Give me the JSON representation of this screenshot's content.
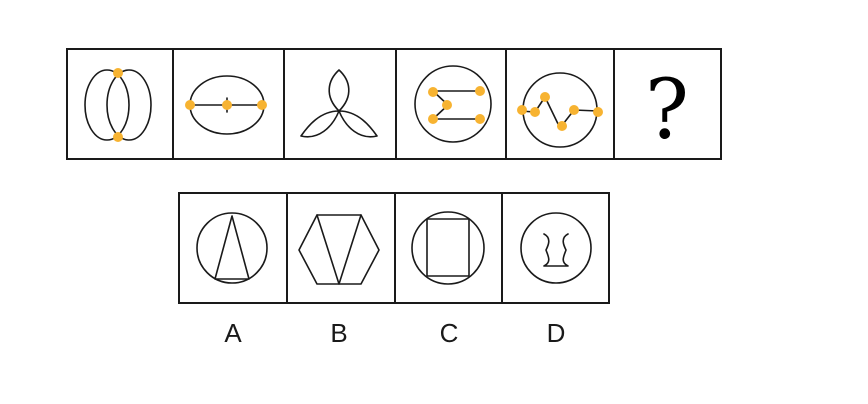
{
  "colors": {
    "line": "#1a1a1a",
    "dot": "#f7b331",
    "background": "#ffffff"
  },
  "question_row": {
    "cells": [
      {
        "icon": "double-ellipse-icon",
        "marked_points": 2
      },
      {
        "icon": "circle-with-cross-line-icon",
        "marked_points": 3
      },
      {
        "icon": "three-petal-icon",
        "marked_points": 0
      },
      {
        "icon": "circle-with-sigma-icon",
        "marked_points": 4
      },
      {
        "icon": "circle-with-zigzag-icon",
        "marked_points": 5
      },
      {
        "icon": "question-mark-icon",
        "text": "?"
      }
    ]
  },
  "options": [
    {
      "label": "A",
      "icon": "circle-with-triangle-icon"
    },
    {
      "label": "B",
      "icon": "hexagon-with-v-icon"
    },
    {
      "label": "C",
      "icon": "circle-with-square-icon"
    },
    {
      "label": "D",
      "icon": "circle-with-bracket-shape-icon"
    }
  ]
}
